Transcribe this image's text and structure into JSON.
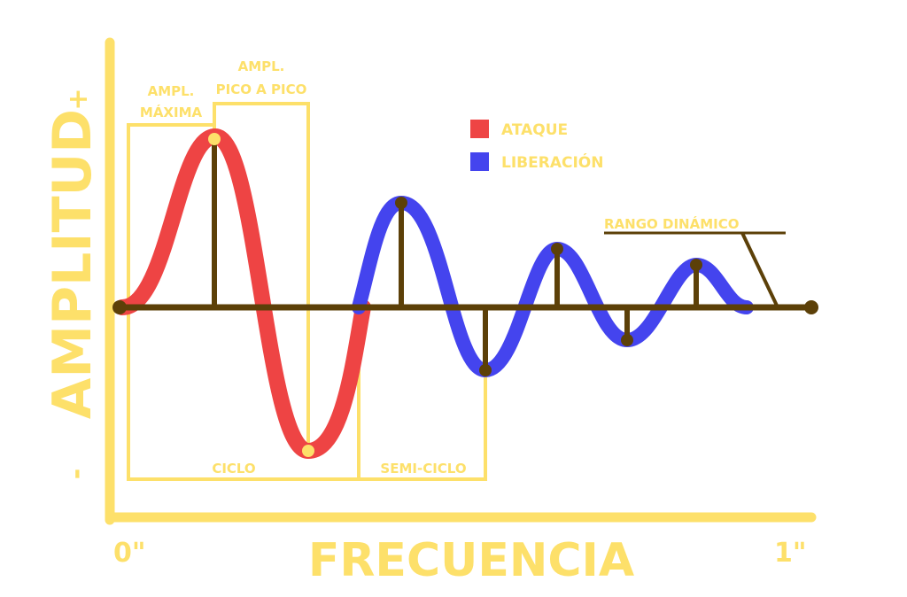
{
  "axes": {
    "y_title": "AMPLITUD",
    "y_plus": "+",
    "y_minus": "-",
    "x_title": "FRECUENCIA",
    "x_start": "0\"",
    "x_end": "1\""
  },
  "annotations": {
    "ampl_maxima_line1": "AMPL.",
    "ampl_maxima_line2": "MÁXIMA",
    "ampl_pico_line1": "AMPL.",
    "ampl_pico_line2": "PICO A PICO",
    "ciclo": "CICLO",
    "semi_ciclo": "SEMI-CICLO",
    "rango_dinamico": "RANGO DINÁMICO"
  },
  "legend": {
    "items": [
      {
        "label": "ATAQUE",
        "color": "#ee4444"
      },
      {
        "label": "LIBERACIÓN",
        "color": "#4444ee"
      }
    ]
  },
  "colors": {
    "axis": "#fde06a",
    "baseline": "#5c4008",
    "attack": "#ee4444",
    "release": "#4444ee",
    "annotation": "#fde06a"
  }
}
